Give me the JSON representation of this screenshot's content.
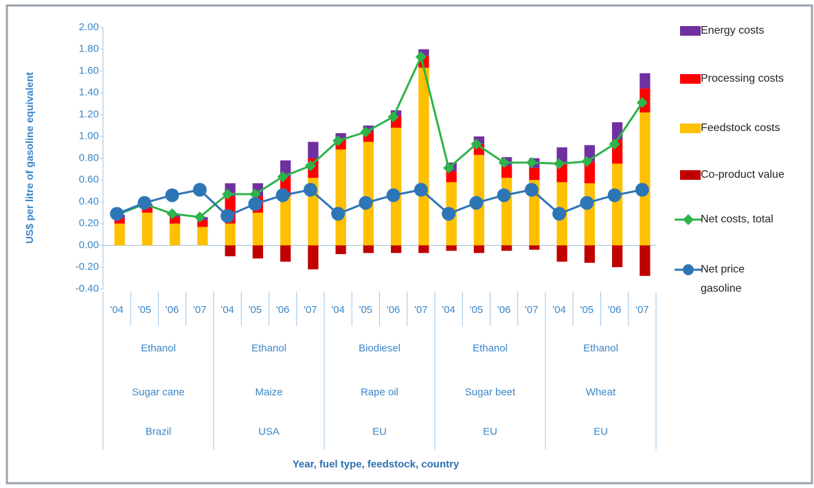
{
  "chart_data": {
    "type": "bar",
    "stacked": true,
    "y_label": "US$ per litre of gasoline equivalent",
    "x_label": "Year, fuel type, feedstock, country",
    "categories": [
      "'04",
      "'05",
      "'06",
      "'07",
      "'04",
      "'05",
      "'06",
      "'07",
      "'04",
      "'05",
      "'06",
      "'07",
      "'04",
      "'05",
      "'06",
      "'07",
      "'04",
      "'05",
      "'06",
      "'07"
    ],
    "groups": [
      {
        "fuel": "Ethanol",
        "feedstock": "Sugar cane",
        "country": "Brazil"
      },
      {
        "fuel": "Ethanol",
        "feedstock": "Maize",
        "country": "USA"
      },
      {
        "fuel": "Biodiesel",
        "feedstock": "Rape oil",
        "country": "EU"
      },
      {
        "fuel": "Ethanol",
        "feedstock": "Sugar beet",
        "country": "EU"
      },
      {
        "fuel": "Ethanol",
        "feedstock": "Wheat",
        "country": "EU"
      }
    ],
    "ylim": [
      -0.4,
      2.0
    ],
    "yticks": [
      {
        "value": 2.0,
        "label": "2.00"
      },
      {
        "value": 1.8,
        "label": "1.80"
      },
      {
        "value": 1.6,
        "label": "1.60"
      },
      {
        "value": 1.4,
        "label": "1.40"
      },
      {
        "value": 1.2,
        "label": "1.20"
      },
      {
        "value": 1.0,
        "label": "1.00"
      },
      {
        "value": 0.8,
        "label": "0.80"
      },
      {
        "value": 0.6,
        "label": "0.60"
      },
      {
        "value": 0.4,
        "label": "0.40"
      },
      {
        "value": 0.2,
        "label": "0.20"
      },
      {
        "value": 0,
        "label": "0.00"
      },
      {
        "value": -0.2,
        "label": "-0.20"
      },
      {
        "value": -0.4,
        "label": "-0.40"
      }
    ],
    "series": [
      {
        "name": "Energy costs",
        "type": "bar",
        "color": "#7030a0",
        "stack_order": 2,
        "values": [
          0.03,
          0.03,
          0.03,
          0.03,
          0.12,
          0.12,
          0.15,
          0.15,
          0.05,
          0.05,
          0.05,
          0.06,
          0.08,
          0.07,
          0.08,
          0.09,
          0.14,
          0.15,
          0.16,
          0.14
        ]
      },
      {
        "name": "Processing costs",
        "type": "bar",
        "color": "#ff0000",
        "stack_order": 1,
        "values": [
          0.05,
          0.05,
          0.06,
          0.06,
          0.25,
          0.15,
          0.18,
          0.18,
          0.1,
          0.1,
          0.11,
          0.11,
          0.1,
          0.1,
          0.11,
          0.11,
          0.18,
          0.2,
          0.22,
          0.22
        ]
      },
      {
        "name": "Feedstock costs",
        "type": "bar",
        "color": "#ffc000",
        "stack_order": 0,
        "values": [
          0.2,
          0.3,
          0.2,
          0.17,
          0.2,
          0.3,
          0.45,
          0.62,
          0.88,
          0.95,
          1.08,
          1.63,
          0.58,
          0.83,
          0.62,
          0.6,
          0.58,
          0.57,
          0.75,
          1.22
        ]
      },
      {
        "name": "Co-product value",
        "type": "bar",
        "color": "#c00000",
        "stack_order": 3,
        "values": [
          0,
          0,
          0,
          0,
          -0.1,
          -0.12,
          -0.15,
          -0.22,
          -0.08,
          -0.07,
          -0.07,
          -0.07,
          -0.05,
          -0.07,
          -0.05,
          -0.04,
          -0.15,
          -0.16,
          -0.2,
          -0.28
        ]
      },
      {
        "name": "Net costs, total",
        "type": "line",
        "marker": "diamond",
        "color": "#2db34a",
        "values": [
          0.28,
          0.38,
          0.29,
          0.26,
          0.47,
          0.47,
          0.63,
          0.73,
          0.96,
          1.04,
          1.18,
          1.73,
          0.71,
          0.93,
          0.76,
          0.76,
          0.75,
          0.77,
          0.93,
          1.31
        ]
      },
      {
        "name": "Net price gasoline",
        "type": "line",
        "marker": "circle",
        "color": "#2e75b6",
        "values": [
          0.29,
          0.39,
          0.46,
          0.51,
          0.27,
          0.38,
          0.46,
          0.51,
          0.29,
          0.39,
          0.46,
          0.51,
          0.29,
          0.39,
          0.46,
          0.51,
          0.29,
          0.39,
          0.46,
          0.51
        ]
      }
    ]
  }
}
